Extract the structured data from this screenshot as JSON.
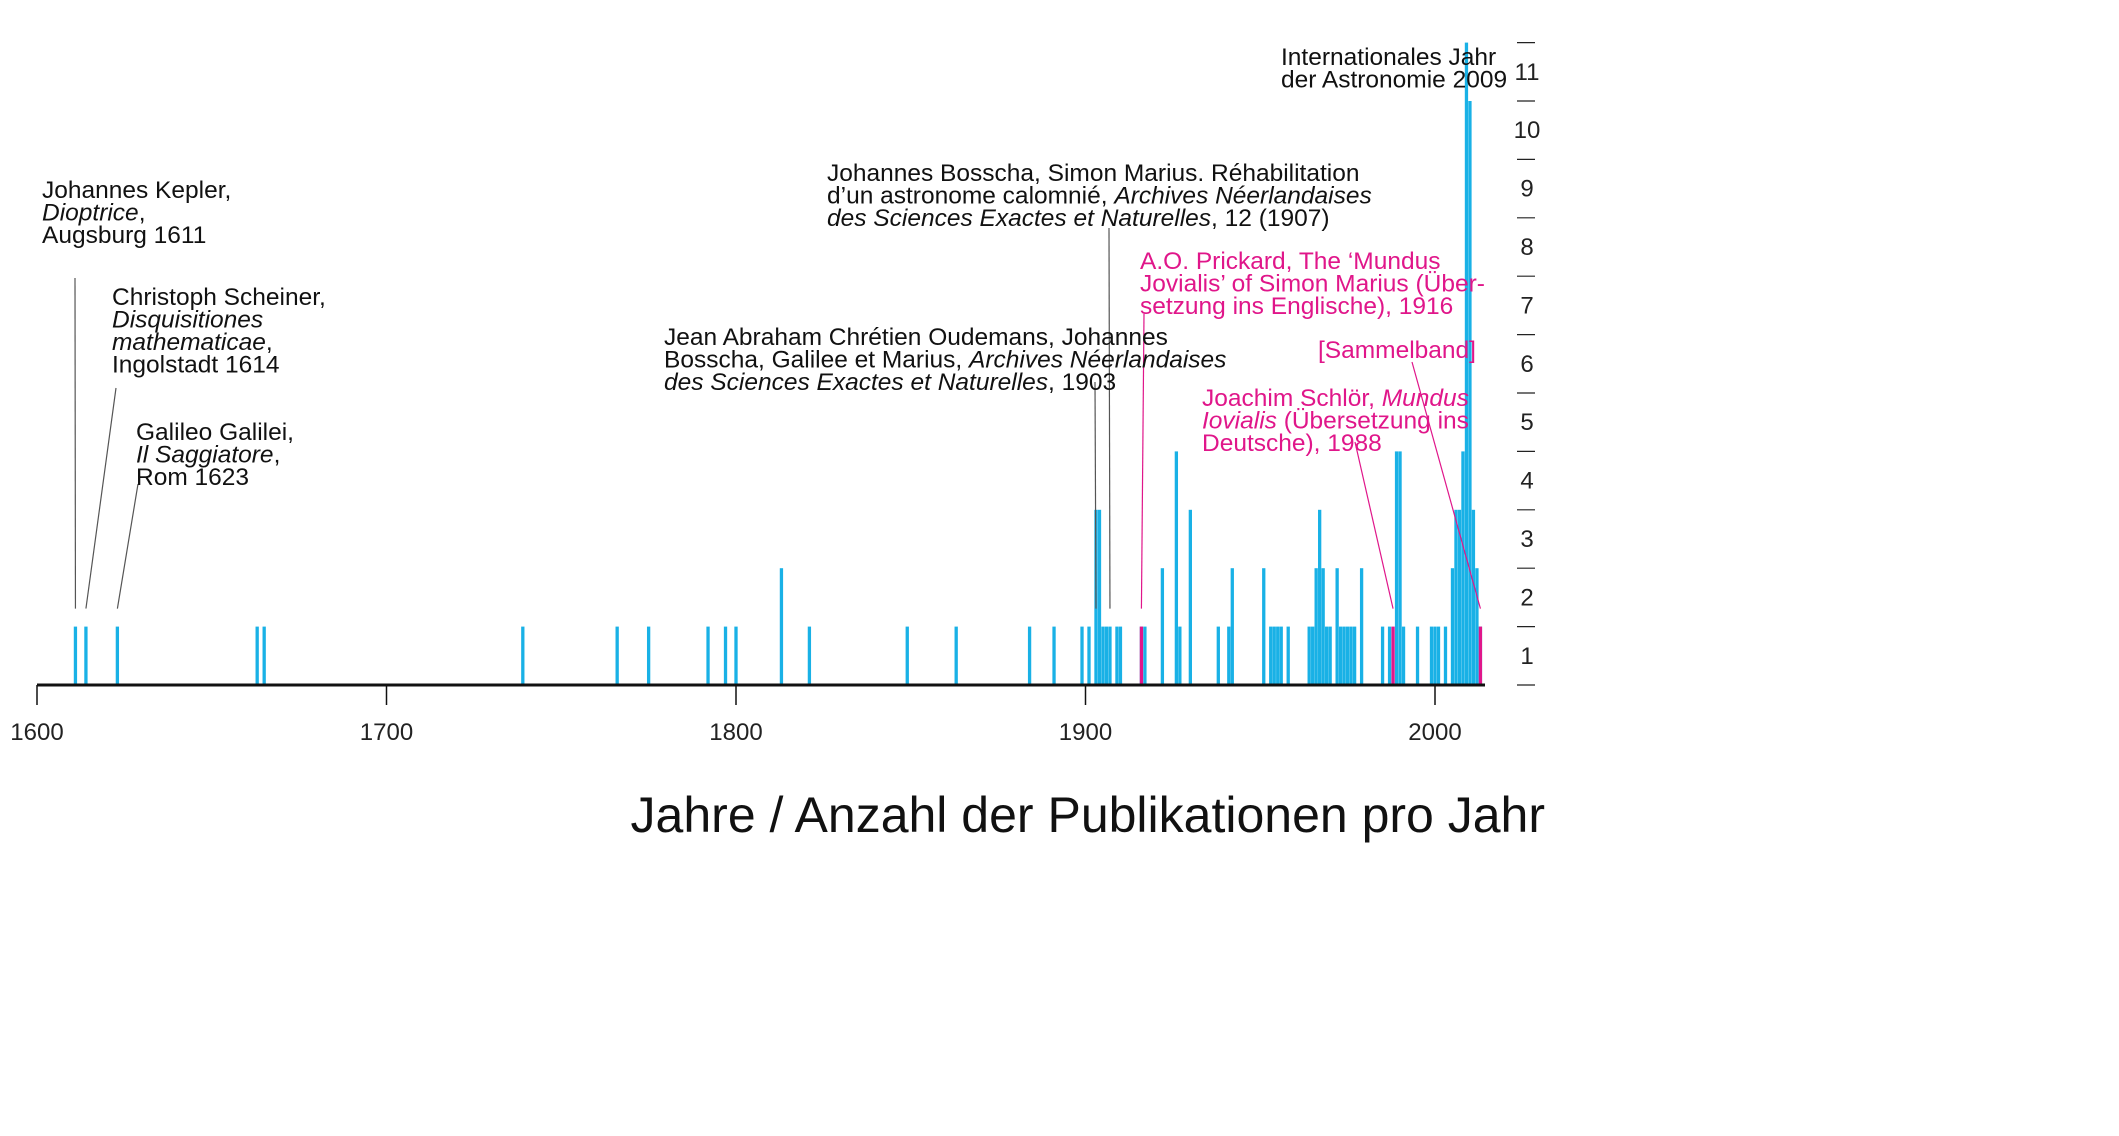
{
  "chart_data": {
    "type": "bar",
    "title": "",
    "xlabel": "Jahre / Anzahl der Publikationen pro Jahr",
    "ylabel": "",
    "xlim": [
      1600,
      2015
    ],
    "ylim": [
      0,
      11
    ],
    "xticks": [
      "1600",
      "1700",
      "1800",
      "1900",
      "2000"
    ],
    "yticks": [
      "1",
      "2",
      "3",
      "4",
      "5",
      "6",
      "7",
      "8",
      "9",
      "10",
      "11"
    ],
    "grid": false,
    "colors": {
      "publication": "#19b1e6",
      "translation": "#e0168a",
      "text": "#111111",
      "axis": "#111111"
    },
    "series": [
      {
        "name": "",
        "color": "#19b1e6",
        "points": [
          [
            1611,
            1
          ],
          [
            1614,
            1
          ],
          [
            1623,
            1
          ],
          [
            1663,
            1
          ],
          [
            1665,
            1
          ],
          [
            1739,
            1
          ],
          [
            1766,
            1
          ],
          [
            1775,
            1
          ],
          [
            1792,
            1
          ],
          [
            1797,
            1
          ],
          [
            1800,
            1
          ],
          [
            1813,
            2
          ],
          [
            1821,
            1
          ],
          [
            1849,
            1
          ],
          [
            1863,
            1
          ],
          [
            1884,
            1
          ],
          [
            1891,
            1
          ],
          [
            1899,
            1
          ],
          [
            1901,
            1
          ],
          [
            1903,
            3
          ],
          [
            1904,
            3
          ],
          [
            1905,
            1
          ],
          [
            1906,
            1
          ],
          [
            1907,
            1
          ],
          [
            1909,
            1
          ],
          [
            1910,
            1
          ],
          [
            1916,
            1
          ],
          [
            1917,
            1
          ],
          [
            1922,
            2
          ],
          [
            1926,
            4
          ],
          [
            1927,
            1
          ],
          [
            1930,
            3
          ],
          [
            1938,
            1
          ],
          [
            1941,
            1
          ],
          [
            1942,
            2
          ],
          [
            1951,
            2
          ],
          [
            1953,
            1
          ],
          [
            1954,
            1
          ],
          [
            1955,
            1
          ],
          [
            1956,
            1
          ],
          [
            1958,
            1
          ],
          [
            1964,
            1
          ],
          [
            1965,
            1
          ],
          [
            1966,
            2
          ],
          [
            1967,
            3
          ],
          [
            1968,
            2
          ],
          [
            1969,
            1
          ],
          [
            1970,
            1
          ],
          [
            1972,
            2
          ],
          [
            1973,
            1
          ],
          [
            1974,
            1
          ],
          [
            1975,
            1
          ],
          [
            1976,
            1
          ],
          [
            1977,
            1
          ],
          [
            1979,
            2
          ],
          [
            1985,
            1
          ],
          [
            1987,
            1
          ],
          [
            1989,
            4
          ],
          [
            1990,
            4
          ],
          [
            1991,
            1
          ],
          [
            1995,
            1
          ],
          [
            1999,
            1
          ],
          [
            2000,
            1
          ],
          [
            2001,
            1
          ],
          [
            2003,
            1
          ],
          [
            2005,
            2
          ],
          [
            2006,
            3
          ],
          [
            2007,
            3
          ],
          [
            2008,
            4
          ],
          [
            2009,
            11
          ],
          [
            2010,
            10
          ],
          [
            2011,
            3
          ],
          [
            2012,
            2
          ],
          [
            2013,
            1
          ]
        ]
      },
      {
        "name": "",
        "color": "#e0168a",
        "points": [
          [
            1916,
            1
          ],
          [
            1988,
            1
          ],
          [
            2013,
            1
          ]
        ]
      }
    ],
    "annotations": [
      {
        "year": 1611,
        "color": "#111111",
        "tx": 42,
        "ty": 198,
        "lx": 75,
        "ly": 278,
        "lines": [
          [
            [
              "Johannes Kepler,",
              false
            ]
          ],
          [
            [
              "Dioptrice",
              true
            ],
            [
              ",",
              false
            ]
          ],
          [
            [
              "Augsburg 1611",
              false
            ]
          ]
        ]
      },
      {
        "year": 1614,
        "color": "#111111",
        "tx": 112,
        "ty": 305,
        "lx": 116,
        "ly": 388,
        "lines": [
          [
            [
              "Christoph Scheiner,",
              false
            ]
          ],
          [
            [
              "Disquisitiones",
              true
            ]
          ],
          [
            [
              "mathematicae",
              true
            ],
            [
              ",",
              false
            ]
          ],
          [
            [
              "Ingolstadt 1614",
              false
            ]
          ]
        ]
      },
      {
        "year": 1623,
        "color": "#111111",
        "tx": 136,
        "ty": 440,
        "lx": 138,
        "ly": 484,
        "lines": [
          [
            [
              "Galileo Galilei,",
              false
            ]
          ],
          [
            [
              "Il Saggiatore",
              true
            ],
            [
              ",",
              false
            ]
          ],
          [
            [
              "Rom 1623",
              false
            ]
          ]
        ]
      },
      {
        "year": 1903,
        "color": "#111111",
        "tx": 664,
        "ty": 345,
        "lx": 1095,
        "ly": 382,
        "lines": [
          [
            [
              "Jean Abraham Chrétien Oudemans, Johannes",
              false
            ]
          ],
          [
            [
              "Bosscha, Galilee et Marius, ",
              false
            ],
            [
              "Archives Néerlandaises",
              true
            ]
          ],
          [
            [
              "des Sciences Exactes et Naturelles",
              true
            ],
            [
              ", 1903",
              false
            ]
          ]
        ]
      },
      {
        "year": 1907,
        "color": "#111111",
        "tx": 827,
        "ty": 181,
        "lx": 1109,
        "ly": 228,
        "lines": [
          [
            [
              "Johannes Bosscha, Simon Marius. Réhabilitation",
              false
            ]
          ],
          [
            [
              "d’un astronome calomnié, ",
              false
            ],
            [
              "Archives Néerlandaises",
              true
            ]
          ],
          [
            [
              "des Sciences Exactes et Naturelles",
              true
            ],
            [
              ", 12 (1907)",
              false
            ]
          ]
        ]
      },
      {
        "year": 1916,
        "color": "#e0168a",
        "tx": 1140,
        "ty": 269,
        "lx": 1144,
        "ly": 314,
        "lines": [
          [
            [
              "A.O. Prickard, The ‘Mundus",
              false
            ]
          ],
          [
            [
              "Jovialis’ of Simon Marius (Über-",
              false
            ]
          ],
          [
            [
              "setzung ins Englische), 1916",
              false
            ]
          ]
        ]
      },
      {
        "year": 1988,
        "color": "#e0168a",
        "tx": 1202,
        "ty": 406,
        "lx": 1355,
        "ly": 442,
        "lines": [
          [
            [
              "Joachim Schlör, ",
              false
            ],
            [
              "Mundus",
              true
            ]
          ],
          [
            [
              "Iovialis",
              true
            ],
            [
              " (Übersetzung ins",
              false
            ]
          ],
          [
            [
              "Deutsche), 1988",
              false
            ]
          ]
        ]
      },
      {
        "year": 2013,
        "color": "#e0168a",
        "tx": 1318,
        "ty": 358,
        "lx": 1412,
        "ly": 362,
        "lines": [
          [
            [
              "[Sammelband]",
              false
            ]
          ]
        ]
      },
      {
        "year": 2009,
        "color": "#111111",
        "tx": 1281,
        "ty": 65,
        "lx": null,
        "ly": null,
        "lines": [
          [
            [
              "Internationales Jahr",
              false
            ]
          ],
          [
            [
              "der Astronomie 2009",
              false
            ]
          ]
        ]
      }
    ]
  }
}
